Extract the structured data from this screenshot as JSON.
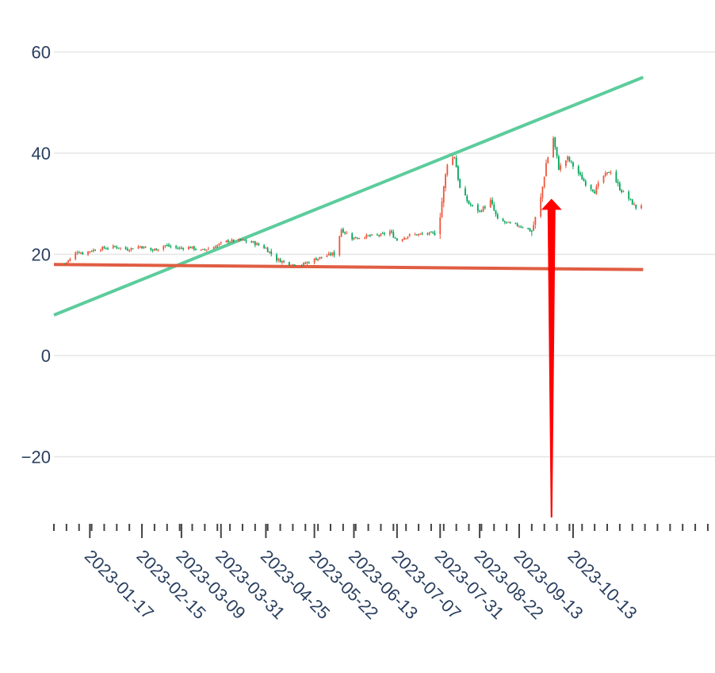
{
  "chart_data": {
    "type": "candlestick",
    "title": "",
    "xlabel": "",
    "ylabel": "",
    "ylim": [
      -32,
      64
    ],
    "xlim": [
      "2022-12-28",
      "2023-12-31"
    ],
    "grid": true,
    "legend": "none",
    "colors": {
      "increasing": "#ef553b",
      "decreasing": "#00a65a",
      "trend_up": "#5ccc9c",
      "trend_flat": "#e05d43",
      "arrow": "#ff0000",
      "text": "#2a3f5f",
      "grid": "#e5e5e5"
    },
    "y_ticks": [
      {
        "value": 60,
        "label": "60"
      },
      {
        "value": 40,
        "label": "40"
      },
      {
        "value": 20,
        "label": "20"
      },
      {
        "value": 0,
        "label": "0"
      },
      {
        "value": -20,
        "label": "−20"
      }
    ],
    "x_ticks": [
      {
        "date": "2023-01-17",
        "label": "2023-01-17"
      },
      {
        "date": "2023-02-15",
        "label": "2023-02-15"
      },
      {
        "date": "2023-03-09",
        "label": "2023-03-09"
      },
      {
        "date": "2023-03-31",
        "label": "2023-03-31"
      },
      {
        "date": "2023-04-25",
        "label": "2023-04-25"
      },
      {
        "date": "2023-05-22",
        "label": "2023-05-22"
      },
      {
        "date": "2023-06-13",
        "label": "2023-06-13"
      },
      {
        "date": "2023-07-07",
        "label": "2023-07-07"
      },
      {
        "date": "2023-07-31",
        "label": "2023-07-31"
      },
      {
        "date": "2023-08-22",
        "label": "2023-08-22"
      },
      {
        "date": "2023-09-13",
        "label": "2023-09-13"
      },
      {
        "date": "2023-10-13",
        "label": "2023-10-13"
      }
    ],
    "series": [
      {
        "type": "candlestick",
        "close_path": [
          [
            "2023-01-03",
            18.2
          ],
          [
            "2023-01-06",
            19.0
          ],
          [
            "2023-01-10",
            20.6
          ],
          [
            "2023-01-13",
            20.2
          ],
          [
            "2023-01-18",
            20.8
          ],
          [
            "2023-01-24",
            21.2
          ],
          [
            "2023-01-31",
            21.5
          ],
          [
            "2023-02-07",
            21.0
          ],
          [
            "2023-02-14",
            21.6
          ],
          [
            "2023-02-21",
            20.8
          ],
          [
            "2023-02-28",
            21.8
          ],
          [
            "2023-03-07",
            21.2
          ],
          [
            "2023-03-14",
            21.4
          ],
          [
            "2023-03-20",
            20.7
          ],
          [
            "2023-03-27",
            21.5
          ],
          [
            "2023-04-03",
            22.6
          ],
          [
            "2023-04-11",
            22.8
          ],
          [
            "2023-04-18",
            22.3
          ],
          [
            "2023-04-25",
            21.2
          ],
          [
            "2023-05-01",
            19.0
          ],
          [
            "2023-05-08",
            18.1
          ],
          [
            "2023-05-15",
            17.9
          ],
          [
            "2023-05-22",
            19.0
          ],
          [
            "2023-05-29",
            19.8
          ],
          [
            "2023-06-02",
            20.2
          ],
          [
            "2023-06-06",
            25.0
          ],
          [
            "2023-06-12",
            23.2
          ],
          [
            "2023-06-20",
            23.6
          ],
          [
            "2023-06-28",
            23.8
          ],
          [
            "2023-07-03",
            24.5
          ],
          [
            "2023-07-07",
            22.8
          ],
          [
            "2023-07-14",
            23.8
          ],
          [
            "2023-07-21",
            24.0
          ],
          [
            "2023-07-28",
            24.2
          ],
          [
            "2023-07-31",
            28.0
          ],
          [
            "2023-08-04",
            38.0
          ],
          [
            "2023-08-08",
            39.5
          ],
          [
            "2023-08-11",
            33.0
          ],
          [
            "2023-08-16",
            30.0
          ],
          [
            "2023-08-22",
            28.5
          ],
          [
            "2023-08-28",
            30.5
          ],
          [
            "2023-09-01",
            26.8
          ],
          [
            "2023-09-08",
            26.0
          ],
          [
            "2023-09-15",
            25.5
          ],
          [
            "2023-09-20",
            24.5
          ],
          [
            "2023-09-25",
            31.0
          ],
          [
            "2023-09-28",
            38.0
          ],
          [
            "2023-10-02",
            43.0
          ],
          [
            "2023-10-05",
            37.0
          ],
          [
            "2023-10-10",
            39.0
          ],
          [
            "2023-10-16",
            36.0
          ],
          [
            "2023-10-20",
            34.0
          ],
          [
            "2023-10-25",
            32.5
          ],
          [
            "2023-10-30",
            35.5
          ],
          [
            "2023-11-03",
            36.5
          ],
          [
            "2023-11-08",
            33.0
          ],
          [
            "2023-11-13",
            31.0
          ],
          [
            "2023-11-17",
            29.2
          ],
          [
            "2023-11-21",
            30.0
          ]
        ]
      }
    ],
    "lines": [
      {
        "name": "",
        "color": "#5ccc9c",
        "points": [
          [
            "2022-12-28",
            8.0
          ],
          [
            "2023-11-21",
            55.0
          ]
        ]
      },
      {
        "name": "",
        "color": "#e05d43",
        "points": [
          [
            "2022-12-28",
            18.0
          ],
          [
            "2023-11-21",
            17.0
          ]
        ]
      }
    ],
    "annotation": {
      "type": "arrow",
      "color": "#ff0000",
      "tip": [
        "2023-10-01",
        31.0
      ],
      "tail": [
        "2023-10-01",
        -32.0
      ]
    }
  }
}
